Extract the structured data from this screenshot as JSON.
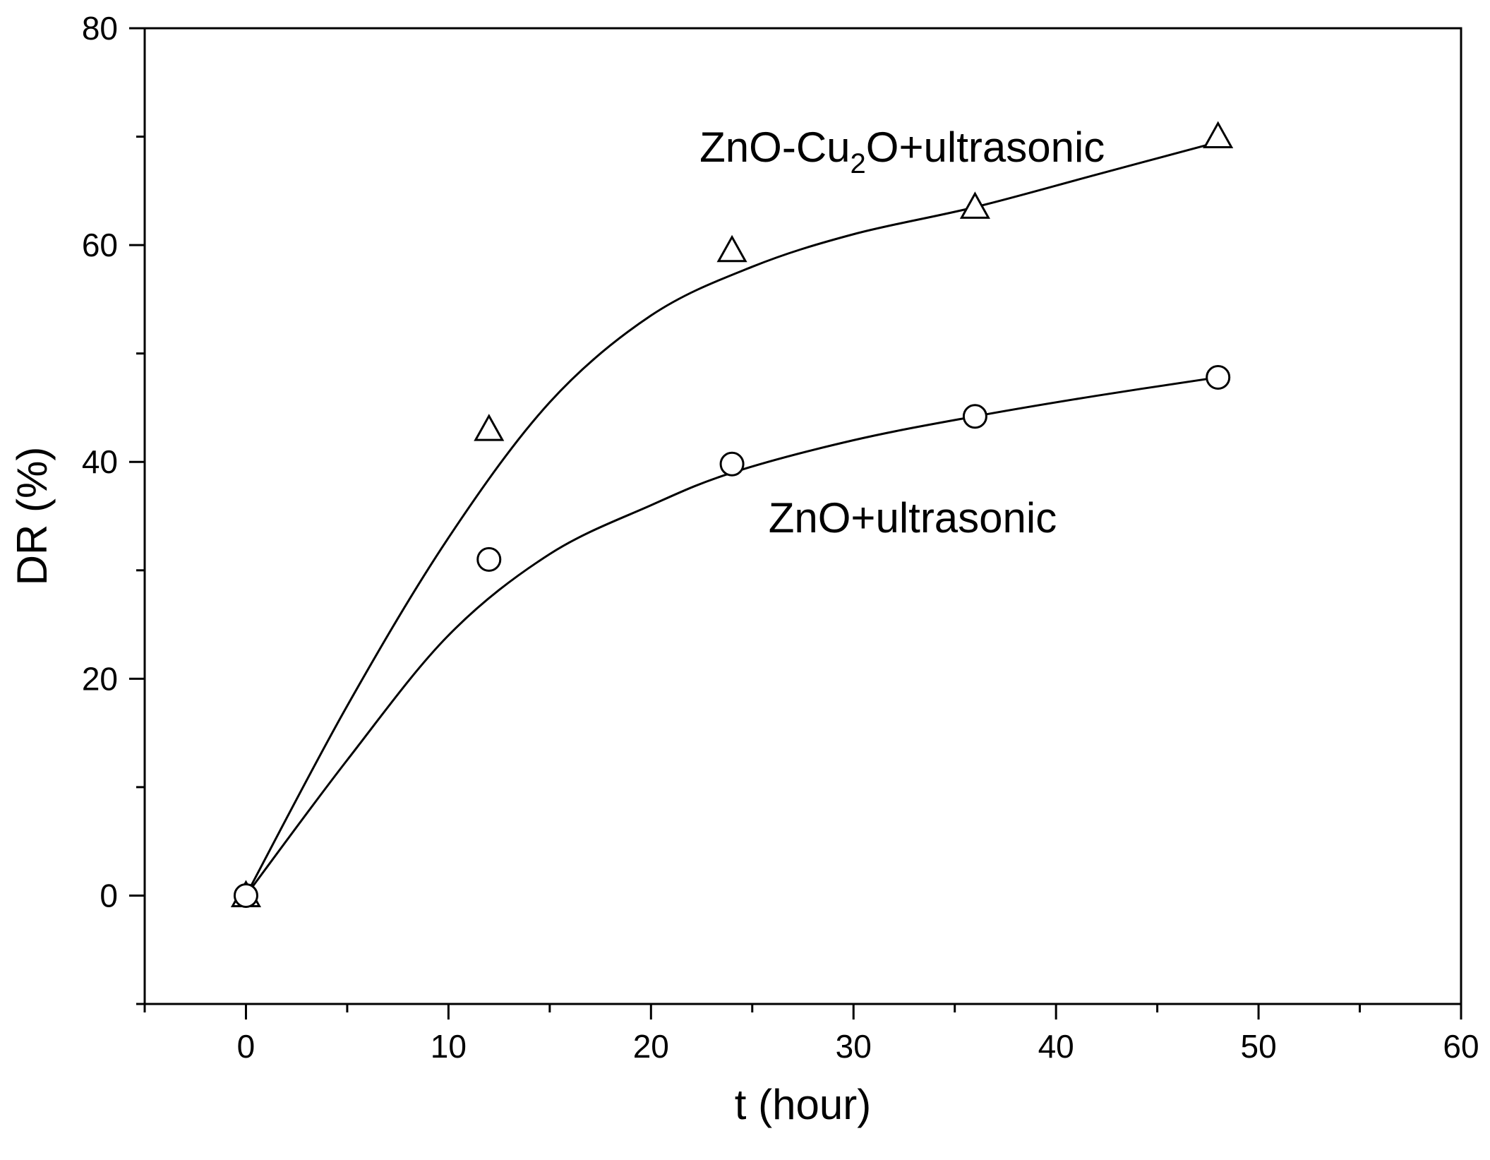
{
  "chart_data": {
    "type": "scatter",
    "title": "",
    "xlabel": "t (hour)",
    "ylabel": "DR (%)",
    "xlim": [
      -5,
      60
    ],
    "ylim": [
      -10,
      80
    ],
    "x_ticks": [
      0,
      10,
      20,
      30,
      40,
      50,
      60
    ],
    "y_ticks": [
      0,
      20,
      40,
      60,
      80
    ],
    "x_tick_labels": [
      "0",
      "10",
      "20",
      "30",
      "40",
      "50",
      "60"
    ],
    "y_tick_labels": [
      "0",
      "20",
      "40",
      "60",
      "80"
    ],
    "grid": false,
    "legend": "none",
    "series": [
      {
        "marker": "triangle",
        "points": [
          {
            "x": 0,
            "y": 0
          },
          {
            "x": 12,
            "y": 43
          },
          {
            "x": 24,
            "y": 59.5
          },
          {
            "x": 36,
            "y": 63.5
          },
          {
            "x": 48,
            "y": 70
          }
        ],
        "fit": [
          {
            "x": 0,
            "y": 0
          },
          {
            "x": 5,
            "y": 17.5
          },
          {
            "x": 10,
            "y": 33
          },
          {
            "x": 15,
            "y": 45.5
          },
          {
            "x": 20,
            "y": 53.5
          },
          {
            "x": 25,
            "y": 58
          },
          {
            "x": 30,
            "y": 61
          },
          {
            "x": 36,
            "y": 63.5
          },
          {
            "x": 42,
            "y": 66.5
          },
          {
            "x": 48,
            "y": 69.5
          }
        ]
      },
      {
        "marker": "circle",
        "points": [
          {
            "x": 0,
            "y": 0
          },
          {
            "x": 12,
            "y": 31
          },
          {
            "x": 24,
            "y": 39.8
          },
          {
            "x": 36,
            "y": 44.2
          },
          {
            "x": 48,
            "y": 47.8
          }
        ],
        "fit": [
          {
            "x": 0,
            "y": 0
          },
          {
            "x": 5,
            "y": 12.5
          },
          {
            "x": 10,
            "y": 24
          },
          {
            "x": 15,
            "y": 31.5
          },
          {
            "x": 20,
            "y": 36
          },
          {
            "x": 24,
            "y": 39
          },
          {
            "x": 30,
            "y": 42
          },
          {
            "x": 36,
            "y": 44.2
          },
          {
            "x": 42,
            "y": 46.1
          },
          {
            "x": 48,
            "y": 47.8
          }
        ]
      }
    ],
    "annotations": [
      {
        "main": "ZnO-Cu",
        "sub": "2",
        "rest": "O+ultrasonic",
        "x": 22.4,
        "y": 69
      },
      {
        "main": "ZnO+ultrasonic",
        "sub": "",
        "rest": "",
        "x": 25.8,
        "y": 34.8
      }
    ]
  }
}
